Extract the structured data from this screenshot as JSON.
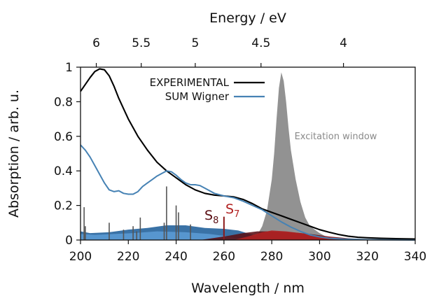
{
  "chart_data": {
    "type": "line",
    "xlabel": "Wavelength / nm",
    "ylabel": "Absorption / arb. u.",
    "top_xlabel": "Energy / eV",
    "xlim": [
      200,
      340
    ],
    "ylim": [
      0,
      1
    ],
    "x_ticks": [
      "200",
      "220",
      "240",
      "260",
      "280",
      "300",
      "320",
      "340"
    ],
    "y_ticks": [
      "0",
      "0.2",
      "0.4",
      "0.6",
      "0.8",
      "1"
    ],
    "top_ticks": [
      {
        "label": "6",
        "wavelength": 206.6
      },
      {
        "label": "5.5",
        "wavelength": 225.4
      },
      {
        "label": "5",
        "wavelength": 248.0
      },
      {
        "label": "4.5",
        "wavelength": 275.5
      },
      {
        "label": "4",
        "wavelength": 310.0
      }
    ],
    "legend_position": "top-center",
    "grid": false,
    "series": [
      {
        "name": "EXPERIMENTAL",
        "color": "#000000",
        "x": [
          200,
          202,
          204,
          206,
          208,
          210,
          212,
          214,
          216,
          218,
          220,
          224,
          228,
          232,
          236,
          240,
          244,
          248,
          252,
          256,
          260,
          264,
          268,
          272,
          276,
          280,
          284,
          288,
          292,
          296,
          300,
          304,
          308,
          312,
          316,
          320,
          326,
          332,
          340
        ],
        "y": [
          0.86,
          0.9,
          0.94,
          0.975,
          0.99,
          0.985,
          0.95,
          0.89,
          0.82,
          0.76,
          0.7,
          0.6,
          0.52,
          0.45,
          0.4,
          0.36,
          0.32,
          0.29,
          0.27,
          0.26,
          0.255,
          0.25,
          0.235,
          0.21,
          0.18,
          0.16,
          0.14,
          0.12,
          0.1,
          0.08,
          0.06,
          0.045,
          0.032,
          0.022,
          0.016,
          0.013,
          0.01,
          0.008,
          0.006
        ]
      },
      {
        "name": "SUM Wigner",
        "color": "#4682b4",
        "x": [
          200,
          202,
          204,
          206,
          208,
          210,
          212,
          214,
          216,
          218,
          220,
          222,
          224,
          226,
          228,
          230,
          232,
          234,
          236,
          238,
          240,
          242,
          244,
          246,
          248,
          250,
          252,
          256,
          260,
          264,
          268,
          272,
          276,
          280,
          284,
          288,
          292,
          296,
          300,
          304,
          310,
          320,
          330,
          340
        ],
        "y": [
          0.55,
          0.52,
          0.48,
          0.43,
          0.38,
          0.33,
          0.29,
          0.28,
          0.285,
          0.27,
          0.265,
          0.265,
          0.28,
          0.31,
          0.33,
          0.35,
          0.37,
          0.385,
          0.4,
          0.395,
          0.375,
          0.35,
          0.33,
          0.32,
          0.32,
          0.315,
          0.3,
          0.27,
          0.255,
          0.245,
          0.225,
          0.2,
          0.175,
          0.14,
          0.105,
          0.075,
          0.05,
          0.03,
          0.018,
          0.01,
          0.005,
          0.002,
          0.001,
          0.0
        ]
      }
    ],
    "excitation_window": {
      "label": "Excitation window",
      "color": "#8c8c8c",
      "x": [
        270,
        274,
        276,
        278,
        280,
        281,
        282,
        283,
        284,
        285,
        286,
        287,
        288,
        290,
        292,
        294,
        296,
        300,
        304,
        306
      ],
      "y": [
        0.0,
        0.03,
        0.08,
        0.17,
        0.35,
        0.5,
        0.7,
        0.88,
        0.97,
        0.92,
        0.8,
        0.65,
        0.52,
        0.35,
        0.22,
        0.13,
        0.08,
        0.04,
        0.01,
        0.0
      ]
    },
    "stick_spectrum": {
      "color": "#555555",
      "x": [
        201.5,
        202,
        212,
        218,
        222,
        223.5,
        225,
        235,
        236,
        240,
        241,
        246
      ],
      "y": [
        0.19,
        0.08,
        0.1,
        0.06,
        0.08,
        0.05,
        0.13,
        0.1,
        0.31,
        0.2,
        0.16,
        0.09
      ]
    },
    "state_bands": [
      {
        "color": "#1f5f9a",
        "x": [
          200,
          204,
          212,
          220,
          228,
          236,
          244,
          252,
          260,
          266,
          272,
          276
        ],
        "y": [
          0.05,
          0.04,
          0.045,
          0.06,
          0.07,
          0.085,
          0.085,
          0.07,
          0.065,
          0.055,
          0.03,
          0.0
        ]
      },
      {
        "color": "#5b9bd5",
        "x": [
          200,
          206,
          214,
          222,
          232,
          244,
          254,
          262,
          268
        ],
        "y": [
          0.035,
          0.03,
          0.035,
          0.04,
          0.05,
          0.045,
          0.035,
          0.02,
          0.0
        ]
      },
      {
        "color": "#5a0f14",
        "x": [
          250,
          256,
          262,
          268,
          274,
          280,
          288,
          296,
          304,
          312,
          320,
          330,
          340
        ],
        "y": [
          0.0,
          0.012,
          0.025,
          0.04,
          0.05,
          0.05,
          0.045,
          0.035,
          0.02,
          0.01,
          0.004,
          0.001,
          0.0
        ]
      },
      {
        "color": "#b22222",
        "x": [
          264,
          270,
          276,
          280,
          286,
          292,
          300,
          308,
          316,
          326,
          340
        ],
        "y": [
          0.0,
          0.02,
          0.045,
          0.055,
          0.05,
          0.04,
          0.025,
          0.012,
          0.005,
          0.001,
          0.0
        ]
      }
    ],
    "state_markers": [
      {
        "label": "S",
        "sub": "8",
        "x": 260,
        "y": 0.12,
        "color": "#5a0f14"
      },
      {
        "label": "S",
        "sub": "7",
        "x": 260,
        "y": 0.09,
        "color": "#b22222"
      }
    ]
  }
}
